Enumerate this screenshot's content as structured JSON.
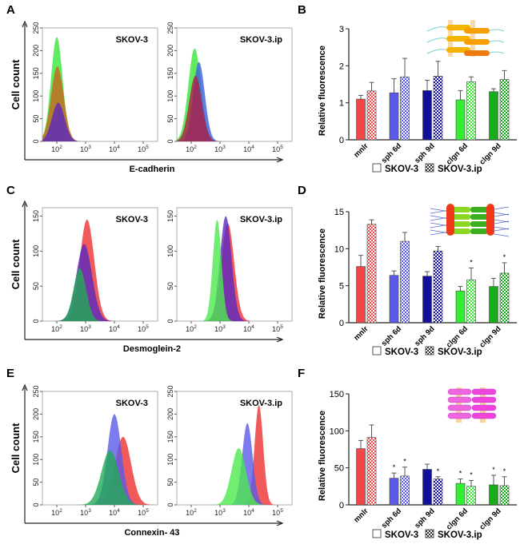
{
  "panel_labels": [
    "A",
    "B",
    "C",
    "D",
    "E",
    "F"
  ],
  "chart_data": [
    {
      "type": "area",
      "panel": "A",
      "xlabel": "E-cadherin",
      "ylabel": "Cell count",
      "xscale": "log",
      "xticks": [
        "10^2",
        "10^3",
        "10^4",
        "10^5"
      ],
      "yticks": [
        0,
        50,
        100,
        150,
        200,
        250
      ],
      "ylim": [
        0,
        250
      ],
      "subplots": [
        {
          "title": "SKOV-3",
          "peaks": [
            {
              "color": "#4ee84e",
              "center_log10": 2.0,
              "height": 230,
              "sd_log10": 0.2
            },
            {
              "color": "#c8641e",
              "center_log10": 2.02,
              "height": 165,
              "sd_log10": 0.22
            },
            {
              "color": "#5a28c0",
              "center_log10": 2.05,
              "height": 85,
              "sd_log10": 0.22
            }
          ]
        },
        {
          "title": "SKOV-3.ip",
          "peaks": [
            {
              "color": "#4ee84e",
              "center_log10": 2.12,
              "height": 205,
              "sd_log10": 0.22
            },
            {
              "color": "#3a5ee0",
              "center_log10": 2.27,
              "height": 175,
              "sd_log10": 0.2
            },
            {
              "color": "#b01e48",
              "center_log10": 2.15,
              "height": 145,
              "sd_log10": 0.22
            }
          ]
        }
      ]
    },
    {
      "type": "bar",
      "panel": "B",
      "ylabel": "Relative fluorescence",
      "ylim": [
        0,
        3
      ],
      "yticks": [
        0,
        1,
        2,
        3
      ],
      "categories": [
        "mnlr",
        "sph 6d",
        "sph 9d",
        "clgn 6d",
        "clgn 9d"
      ],
      "category_colors": [
        "#f04848",
        "#5a5ae8",
        "#10109a",
        "#33ee33",
        "#18ac18"
      ],
      "series": [
        {
          "name": "SKOV-3",
          "pattern": "solid",
          "values": [
            1.1,
            1.27,
            1.33,
            1.08,
            1.3
          ],
          "errors": [
            0.1,
            0.38,
            0.28,
            0.25,
            0.08
          ],
          "significant": [
            false,
            false,
            false,
            false,
            false
          ]
        },
        {
          "name": "SKOV-3.ip",
          "pattern": "checkered",
          "values": [
            1.32,
            1.7,
            1.72,
            1.57,
            1.63
          ],
          "errors": [
            0.23,
            0.5,
            0.4,
            0.13,
            0.24
          ],
          "significant": [
            false,
            false,
            false,
            false,
            false
          ]
        }
      ]
    },
    {
      "type": "area",
      "panel": "C",
      "xlabel": "Desmoglein-2",
      "ylabel": "Cell count",
      "xscale": "log",
      "xticks": [
        "10^2",
        "10^3",
        "10^4",
        "10^5"
      ],
      "yticks": [
        0,
        50,
        100,
        150
      ],
      "ylim": [
        0,
        162
      ],
      "subplots": [
        {
          "title": "SKOV-3",
          "peaks": [
            {
              "color": "#f04848",
              "center_log10": 3.05,
              "height": 145,
              "sd_log10": 0.25
            },
            {
              "color": "#5a28c0",
              "center_log10": 2.95,
              "height": 110,
              "sd_log10": 0.27
            },
            {
              "color": "#22aa55",
              "center_log10": 2.8,
              "height": 75,
              "sd_log10": 0.22
            }
          ]
        },
        {
          "title": "SKOV-3.ip",
          "peaks": [
            {
              "color": "#f04848",
              "center_log10": 3.27,
              "height": 140,
              "sd_log10": 0.22
            },
            {
              "color": "#5a28c0",
              "center_log10": 3.2,
              "height": 150,
              "sd_log10": 0.2
            },
            {
              "color": "#4ee84e",
              "center_log10": 2.9,
              "height": 145,
              "sd_log10": 0.15
            }
          ]
        }
      ]
    },
    {
      "type": "bar",
      "panel": "D",
      "ylabel": "Relative fluorescence",
      "ylim": [
        0,
        15
      ],
      "yticks": [
        0,
        5,
        10,
        15
      ],
      "categories": [
        "mnlr",
        "sph 6d",
        "sph 9d",
        "clgn 6d",
        "clgn 9d"
      ],
      "category_colors": [
        "#f04848",
        "#5a5ae8",
        "#10109a",
        "#33ee33",
        "#18ac18"
      ],
      "series": [
        {
          "name": "SKOV-3",
          "pattern": "solid",
          "values": [
            7.6,
            6.4,
            6.3,
            4.3,
            4.9
          ],
          "errors": [
            1.5,
            0.6,
            0.6,
            0.6,
            1.1
          ],
          "significant": [
            false,
            false,
            false,
            false,
            false
          ]
        },
        {
          "name": "SKOV-3.ip",
          "pattern": "checkered",
          "values": [
            13.3,
            11.0,
            9.7,
            5.8,
            6.7
          ],
          "errors": [
            0.6,
            1.2,
            0.6,
            1.6,
            1.4
          ],
          "significant": [
            false,
            false,
            false,
            true,
            true
          ]
        }
      ]
    },
    {
      "type": "area",
      "panel": "E",
      "xlabel": "Connexin- 43",
      "ylabel": "Cell count",
      "xscale": "log",
      "xticks": [
        "10^2",
        "10^3",
        "10^4",
        "10^5"
      ],
      "yticks": [
        0,
        50,
        100,
        150,
        200,
        250
      ],
      "ylim": [
        0,
        250
      ],
      "subplots": [
        {
          "title": "SKOV-3",
          "peaks": [
            {
              "color": "#f04848",
              "center_log10": 4.3,
              "height": 150,
              "sd_log10": 0.28
            },
            {
              "color": "#5a5ae8",
              "center_log10": 4.0,
              "height": 200,
              "sd_log10": 0.24
            },
            {
              "color": "#22aa55",
              "center_log10": 3.85,
              "height": 120,
              "sd_log10": 0.3
            }
          ]
        },
        {
          "title": "SKOV-3.ip",
          "peaks": [
            {
              "color": "#f04848",
              "center_log10": 4.35,
              "height": 220,
              "sd_log10": 0.15
            },
            {
              "color": "#5a5ae8",
              "center_log10": 3.95,
              "height": 180,
              "sd_log10": 0.18
            },
            {
              "color": "#4ee84e",
              "center_log10": 3.65,
              "height": 125,
              "sd_log10": 0.25
            }
          ]
        }
      ]
    },
    {
      "type": "bar",
      "panel": "F",
      "ylabel": "Relative fluorescence",
      "ylim": [
        0,
        150
      ],
      "yticks": [
        0,
        50,
        100,
        150
      ],
      "categories": [
        "mnlr",
        "sph 6d",
        "sph 9d",
        "clgn 6d",
        "clgn 9d"
      ],
      "category_colors": [
        "#f04848",
        "#5a5ae8",
        "#10109a",
        "#33ee33",
        "#18ac18"
      ],
      "series": [
        {
          "name": "SKOV-3",
          "pattern": "solid",
          "values": [
            76,
            36,
            48,
            29,
            27
          ],
          "errors": [
            11,
            7,
            7,
            6,
            13
          ],
          "significant": [
            false,
            true,
            false,
            true,
            true
          ]
        },
        {
          "name": "SKOV-3.ip",
          "pattern": "checkered",
          "values": [
            91,
            39,
            35,
            25,
            26
          ],
          "errors": [
            17,
            12,
            3,
            8,
            12
          ],
          "significant": [
            false,
            true,
            true,
            true,
            true
          ]
        }
      ]
    }
  ],
  "significance_mark": "*",
  "icons": [
    "adherens-junction-icon",
    "desmosome-icon",
    "gap-junction-icon"
  ]
}
